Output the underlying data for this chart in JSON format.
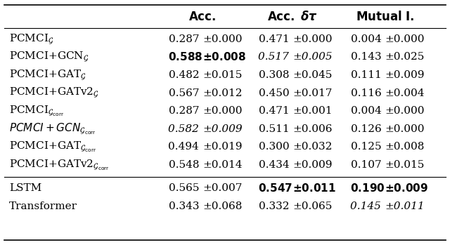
{
  "headers": [
    "",
    "Acc.",
    "Acc. $\\delta\\tau$",
    "Mutual I."
  ],
  "rows": [
    {
      "label_parts": [
        [
          "PCMCI",
          false,
          false
        ],
        [
          "$_{\\mathcal{G}}$",
          false,
          false
        ]
      ],
      "col1": [
        "0.287 ",
        false,
        false
      ],
      "col1_pm": [
        "±0.000",
        false,
        false
      ],
      "col2": [
        "0.471 ",
        false,
        false
      ],
      "col2_pm": [
        "±0.000",
        false,
        false
      ],
      "col3": [
        "0.004 ",
        false,
        false
      ],
      "col3_pm": [
        "±0.000",
        false,
        false
      ]
    },
    {
      "label_parts": [
        [
          "PCMCI+GCN",
          false,
          false
        ],
        [
          "$_{\\mathcal{G}}$",
          false,
          false
        ]
      ],
      "col1": [
        "0.588 ",
        true,
        false
      ],
      "col1_pm": [
        "±0.008",
        true,
        false
      ],
      "col2": [
        "0.517 ",
        false,
        true
      ],
      "col2_pm": [
        "±0.005",
        false,
        true
      ],
      "col3": [
        "0.143 ",
        false,
        false
      ],
      "col3_pm": [
        "±0.025",
        false,
        false
      ]
    },
    {
      "label_parts": [
        [
          "PCMCI+GAT",
          false,
          false
        ],
        [
          "$_{\\mathcal{G}}$",
          false,
          false
        ]
      ],
      "col1": [
        "0.482 ",
        false,
        false
      ],
      "col1_pm": [
        "±0.015",
        false,
        false
      ],
      "col2": [
        "0.308 ",
        false,
        false
      ],
      "col2_pm": [
        "±0.045",
        false,
        false
      ],
      "col3": [
        "0.111 ",
        false,
        false
      ],
      "col3_pm": [
        "±0.009",
        false,
        false
      ]
    },
    {
      "label_parts": [
        [
          "PCMCI+GATv2",
          false,
          false
        ],
        [
          "$_{\\mathcal{G}}$",
          false,
          false
        ]
      ],
      "col1": [
        "0.567 ",
        false,
        false
      ],
      "col1_pm": [
        "±0.012",
        false,
        false
      ],
      "col2": [
        "0.450 ",
        false,
        false
      ],
      "col2_pm": [
        "±0.017",
        false,
        false
      ],
      "col3": [
        "0.116 ",
        false,
        false
      ],
      "col3_pm": [
        "±0.004",
        false,
        false
      ]
    },
    {
      "label_parts": [
        [
          "PCMCI",
          false,
          false
        ],
        [
          "$_{\\mathcal{G}_{\\mathrm{corr}}}$",
          false,
          false
        ]
      ],
      "col1": [
        "0.287 ",
        false,
        false
      ],
      "col1_pm": [
        "±0.000",
        false,
        false
      ],
      "col2": [
        "0.471 ",
        false,
        false
      ],
      "col2_pm": [
        "±0.001",
        false,
        false
      ],
      "col3": [
        "0.004 ",
        false,
        false
      ],
      "col3_pm": [
        "±0.000",
        false,
        false
      ]
    },
    {
      "label_parts": [
        [
          "PCMCI+GCN",
          false,
          true
        ],
        [
          "$_{\\mathcal{G}_{\\mathrm{corr}}}$",
          false,
          true
        ]
      ],
      "col1": [
        "0.582 ",
        false,
        true
      ],
      "col1_pm": [
        "±0.009",
        false,
        true
      ],
      "col2": [
        "0.511 ",
        false,
        false
      ],
      "col2_pm": [
        "±0.006",
        false,
        false
      ],
      "col3": [
        "0.126 ",
        false,
        false
      ],
      "col3_pm": [
        "±0.000",
        false,
        false
      ]
    },
    {
      "label_parts": [
        [
          "PCMCI+GAT",
          false,
          false
        ],
        [
          "$_{\\mathcal{G}_{\\mathrm{corr}}}$",
          false,
          false
        ]
      ],
      "col1": [
        "0.494 ",
        false,
        false
      ],
      "col1_pm": [
        "±0.019",
        false,
        false
      ],
      "col2": [
        "0.300 ",
        false,
        false
      ],
      "col2_pm": [
        "±0.032",
        false,
        false
      ],
      "col3": [
        "0.125 ",
        false,
        false
      ],
      "col3_pm": [
        "±0.008",
        false,
        false
      ]
    },
    {
      "label_parts": [
        [
          "PCMCI+GATv2",
          false,
          false
        ],
        [
          "$_{\\mathcal{G}_{\\mathrm{corr}}}$",
          false,
          false
        ]
      ],
      "col1": [
        "0.548 ",
        false,
        false
      ],
      "col1_pm": [
        "±0.014",
        false,
        false
      ],
      "col2": [
        "0.434 ",
        false,
        false
      ],
      "col2_pm": [
        "±0.009",
        false,
        false
      ],
      "col3": [
        "0.107 ",
        false,
        false
      ],
      "col3_pm": [
        "±0.015",
        false,
        false
      ]
    },
    {
      "label_parts": [
        [
          "LSTM",
          false,
          false
        ]
      ],
      "col1": [
        "0.565 ",
        false,
        false
      ],
      "col1_pm": [
        "±0.007",
        false,
        false
      ],
      "col2": [
        "0.547 ",
        true,
        false
      ],
      "col2_pm": [
        "±0.011",
        true,
        false
      ],
      "col3": [
        "0.190 ",
        true,
        false
      ],
      "col3_pm": [
        "±0.009",
        true,
        false
      ],
      "separator_above": true
    },
    {
      "label_parts": [
        [
          "Transformer",
          false,
          false
        ]
      ],
      "col1": [
        "0.343 ",
        false,
        false
      ],
      "col1_pm": [
        "±0.068",
        false,
        false
      ],
      "col2": [
        "0.332 ",
        false,
        false
      ],
      "col2_pm": [
        "±0.065",
        false,
        false
      ],
      "col3": [
        "0.145 ",
        false,
        true
      ],
      "col3_pm": [
        "±0.011",
        false,
        true
      ]
    }
  ],
  "bg_color": "white",
  "font_size": 11
}
